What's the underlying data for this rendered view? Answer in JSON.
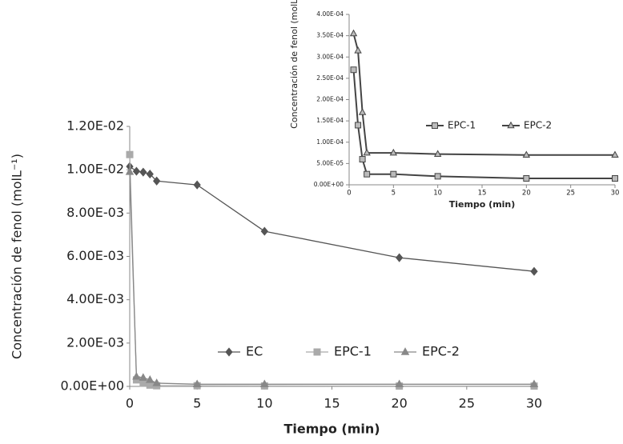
{
  "chart_data": [
    {
      "type": "line",
      "x": [
        0,
        0.5,
        1,
        1.5,
        2,
        5,
        10,
        20,
        30
      ],
      "series": [
        {
          "name": "EC",
          "color": "#555555",
          "marker": "diamond",
          "values": [
            0.01015,
            0.00993,
            0.00989,
            0.0098,
            0.00948,
            0.0093,
            0.00716,
            0.00594,
            0.00531
          ]
        },
        {
          "name": "EPC-1",
          "color": "#aaaaaa",
          "marker": "square",
          "values": [
            0.0107,
            0.0003,
            0.00015,
            6e-05,
            3e-05,
            3e-05,
            2e-05,
            1.5e-05,
            1.5e-05
          ]
        },
        {
          "name": "EPC-2",
          "color": "#888888",
          "marker": "triangle",
          "values": [
            0.0099,
            0.00045,
            0.0004,
            0.0003,
            0.00015,
            0.0001,
            0.0001,
            0.0001,
            0.0001
          ]
        }
      ],
      "xlabel": "Tiempo (min)",
      "ylabel": "Concentración de fenol (molL⁻¹)",
      "xlim": [
        0,
        30
      ],
      "xticks": [
        0,
        5,
        10,
        15,
        20,
        25,
        30
      ],
      "ylim": [
        0,
        0.012
      ],
      "yticks": [
        {
          "value": 0,
          "label": "0.00E+00"
        },
        {
          "value": 0.002,
          "label": "2.00E-03"
        },
        {
          "value": 0.004,
          "label": "4.00E-03"
        },
        {
          "value": 0.006,
          "label": "6.00E-03"
        },
        {
          "value": 0.008,
          "label": "8.00E-03"
        },
        {
          "value": 0.01,
          "label": "1.00E-02"
        },
        {
          "value": 0.012,
          "label": "1.20E-02"
        }
      ],
      "legend": "bottom"
    },
    {
      "type": "line",
      "x": [
        0.5,
        1,
        1.5,
        2,
        5,
        10,
        20,
        30
      ],
      "series": [
        {
          "name": "EPC-1",
          "color": "#444444",
          "marker": "square",
          "values": [
            0.00027,
            0.00014,
            6e-05,
            2.5e-05,
            2.5e-05,
            2e-05,
            1.5e-05,
            1.5e-05
          ]
        },
        {
          "name": "EPC-2",
          "color": "#444444",
          "marker": "triangle",
          "values": [
            0.000355,
            0.000315,
            0.00017,
            7.5e-05,
            7.5e-05,
            7.2e-05,
            7e-05,
            7e-05
          ]
        }
      ],
      "xlabel": "Tiempo (min)",
      "ylabel": "Concentración de fenol (molL⁻¹)",
      "xlim": [
        0,
        30
      ],
      "xticks": [
        0,
        5,
        10,
        15,
        20,
        25,
        30
      ],
      "ylim": [
        0,
        0.0004
      ],
      "yticks": [
        {
          "value": 0,
          "label": "0.00E+00"
        },
        {
          "value": 5e-05,
          "label": "5.00E-05"
        },
        {
          "value": 0.0001,
          "label": "1.00E-04"
        },
        {
          "value": 0.00015,
          "label": "1.50E-04"
        },
        {
          "value": 0.0002,
          "label": "2.00E-04"
        },
        {
          "value": 0.00025,
          "label": "2.50E-04"
        },
        {
          "value": 0.0003,
          "label": "3.00E-04"
        },
        {
          "value": 0.00035,
          "label": "3.50E-04"
        },
        {
          "value": 0.0004,
          "label": "4.00E-04"
        }
      ],
      "legend": "middle"
    }
  ]
}
